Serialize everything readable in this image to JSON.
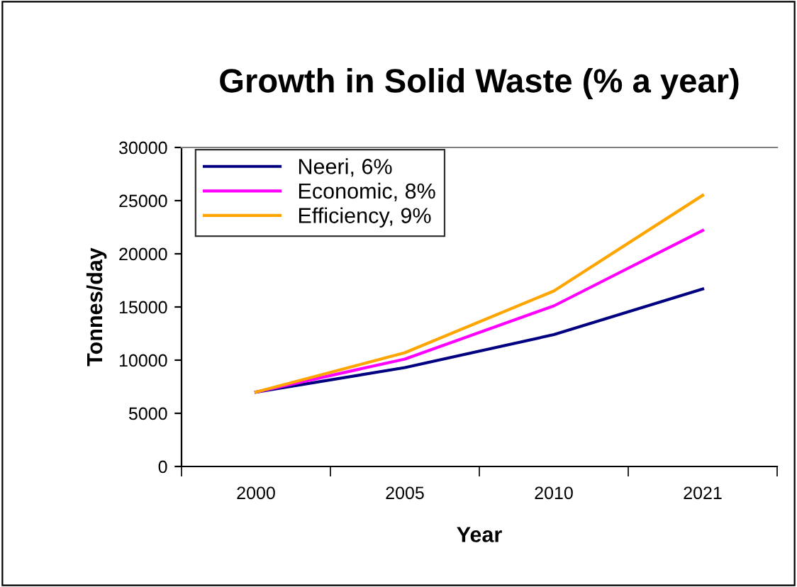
{
  "chart_data": {
    "type": "line",
    "title": "Growth in Solid Waste (% a year)",
    "xlabel": "Year",
    "ylabel": "Tonnes/day",
    "categories": [
      "2000",
      "2005",
      "2010",
      "2021"
    ],
    "series": [
      {
        "name": "Neeri, 6%",
        "color": "#000080",
        "values": [
          7000,
          9300,
          12400,
          16700
        ]
      },
      {
        "name": "Economic, 8%",
        "color": "#ff00ff",
        "values": [
          7000,
          10100,
          15100,
          22200
        ]
      },
      {
        "name": "Efficiency, 9%",
        "color": "#ffa500",
        "values": [
          7000,
          10700,
          16500,
          25500
        ]
      }
    ],
    "ylim": [
      0,
      30000
    ],
    "yticks": [
      0,
      5000,
      10000,
      15000,
      20000,
      25000,
      30000
    ],
    "grid": false,
    "legend": "top left",
    "marker": "none",
    "line_style": "solid"
  }
}
